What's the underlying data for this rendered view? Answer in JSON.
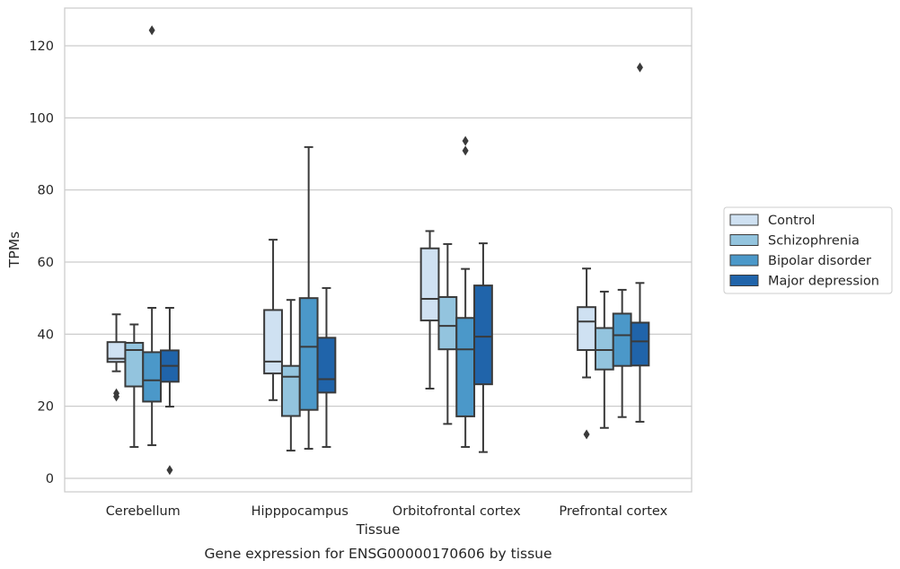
{
  "chart_data": {
    "type": "box",
    "title": "",
    "caption": "Gene expression for ENSG00000170606 by tissue",
    "xlabel": "Tissue",
    "ylabel": "TPMs",
    "ylim": [
      -4,
      130
    ],
    "yticks": [
      0,
      20,
      40,
      60,
      80,
      100,
      120
    ],
    "grid": "horizontal",
    "legend_position": "right",
    "categories": [
      "Cerebellum",
      "Hipppocampus",
      "Orbitofrontal cortex",
      "Prefrontal cortex"
    ],
    "series": [
      {
        "name": "Control",
        "color": "#cfe1f2",
        "boxes": [
          {
            "whislo": 29.7,
            "q1": 32.3,
            "med": 33.2,
            "q3": 37.8,
            "whishi": 45.5,
            "fliers": [
              22.7,
              23.6
            ]
          },
          {
            "whislo": 21.7,
            "q1": 29.1,
            "med": 32.4,
            "q3": 46.7,
            "whishi": 66.2,
            "fliers": []
          },
          {
            "whislo": 24.9,
            "q1": 43.8,
            "med": 49.8,
            "q3": 63.8,
            "whishi": 68.6,
            "fliers": []
          },
          {
            "whislo": 28.0,
            "q1": 35.6,
            "med": 43.5,
            "q3": 47.5,
            "whishi": 58.2,
            "fliers": [
              12.2
            ]
          }
        ]
      },
      {
        "name": "Schizophrenia",
        "color": "#93c4de",
        "boxes": [
          {
            "whislo": 8.7,
            "q1": 25.5,
            "med": 35.6,
            "q3": 37.6,
            "whishi": 42.7,
            "fliers": []
          },
          {
            "whislo": 7.7,
            "q1": 17.3,
            "med": 28.2,
            "q3": 31.2,
            "whishi": 49.5,
            "fliers": []
          },
          {
            "whislo": 15.1,
            "q1": 35.8,
            "med": 42.3,
            "q3": 50.3,
            "whishi": 65.0,
            "fliers": []
          },
          {
            "whislo": 14.0,
            "q1": 30.2,
            "med": 35.6,
            "q3": 41.7,
            "whishi": 51.8,
            "fliers": []
          }
        ]
      },
      {
        "name": "Bipolar disorder",
        "color": "#4b98c9",
        "boxes": [
          {
            "whislo": 9.2,
            "q1": 21.3,
            "med": 27.2,
            "q3": 35.0,
            "whishi": 47.3,
            "fliers": [
              124.3
            ]
          },
          {
            "whislo": 8.2,
            "q1": 19.0,
            "med": 36.5,
            "q3": 50.0,
            "whishi": 91.9,
            "fliers": []
          },
          {
            "whislo": 8.7,
            "q1": 17.2,
            "med": 35.8,
            "q3": 44.5,
            "whishi": 58.1,
            "fliers": [
              90.9,
              93.6
            ]
          },
          {
            "whislo": 17.0,
            "q1": 31.2,
            "med": 39.7,
            "q3": 45.7,
            "whishi": 52.3,
            "fliers": []
          }
        ]
      },
      {
        "name": "Major depression",
        "color": "#2064aa",
        "boxes": [
          {
            "whislo": 19.9,
            "q1": 26.8,
            "med": 31.2,
            "q3": 35.5,
            "whishi": 47.3,
            "fliers": [
              2.3
            ]
          },
          {
            "whislo": 8.7,
            "q1": 23.8,
            "med": 27.5,
            "q3": 39.0,
            "whishi": 52.8,
            "fliers": []
          },
          {
            "whislo": 7.3,
            "q1": 26.1,
            "med": 39.3,
            "q3": 53.5,
            "whishi": 65.2,
            "fliers": []
          },
          {
            "whislo": 15.7,
            "q1": 31.3,
            "med": 38.0,
            "q3": 43.2,
            "whishi": 54.2,
            "fliers": [
              114.0
            ]
          }
        ]
      }
    ]
  }
}
